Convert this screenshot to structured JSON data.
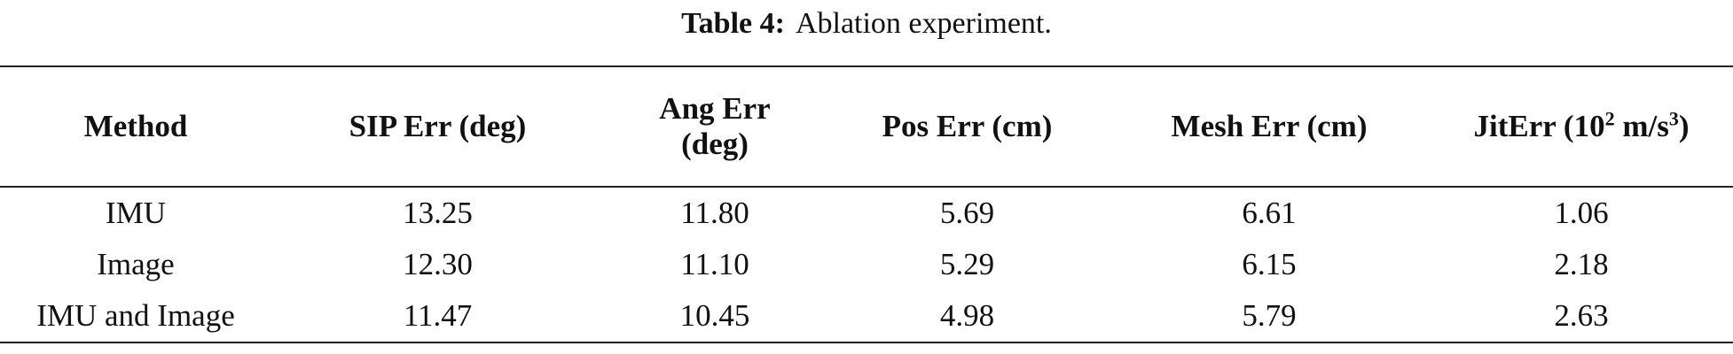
{
  "caption": {
    "label": "Table 4:",
    "text": "Ablation experiment."
  },
  "table": {
    "header": [
      "Method",
      "SIP Err (deg)",
      "Ang Err (deg)",
      "Pos Err (cm)",
      "Mesh Err (cm)",
      {
        "parts": [
          "JitErr (10",
          "2",
          " m/s",
          "3",
          ")"
        ]
      }
    ],
    "rows": [
      [
        "IMU",
        "13.25",
        "11.80",
        "5.69",
        "6.61",
        "1.06"
      ],
      [
        "Image",
        "12.30",
        "11.10",
        "5.29",
        "6.15",
        "2.18"
      ],
      [
        "IMU and Image",
        "11.47",
        "10.45",
        "4.98",
        "5.79",
        "2.63"
      ]
    ]
  }
}
